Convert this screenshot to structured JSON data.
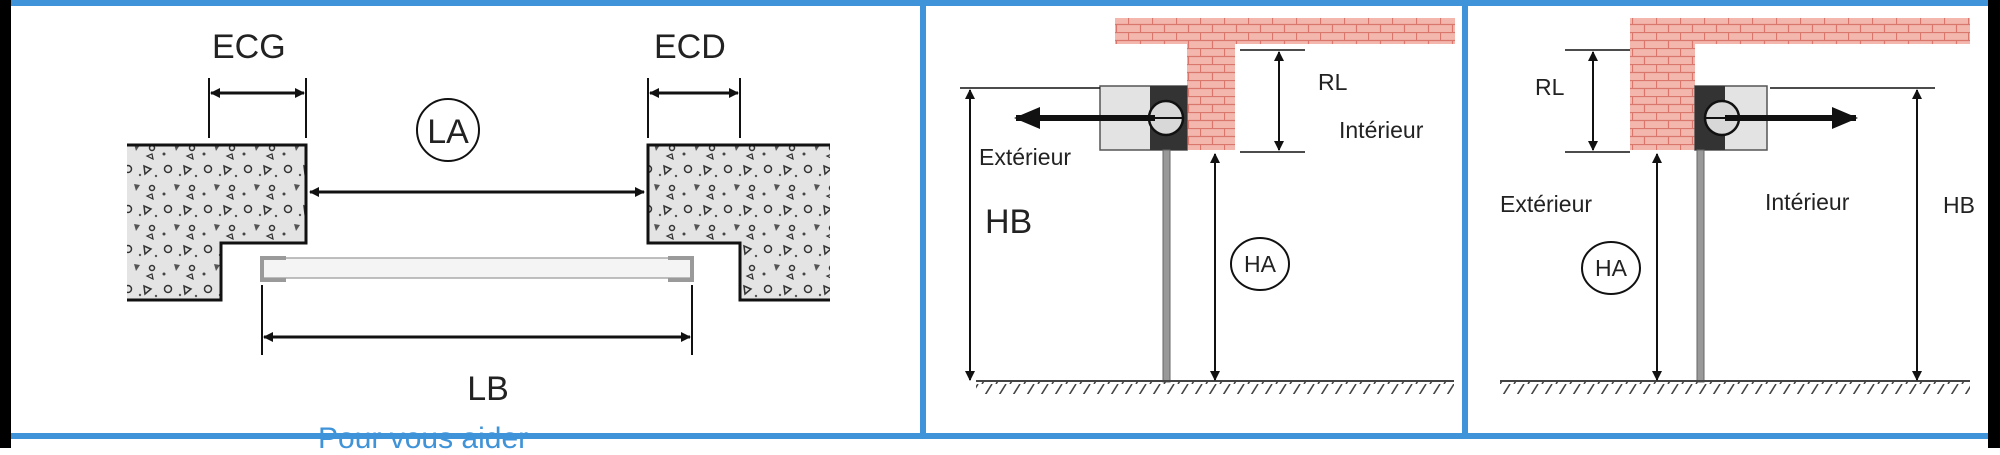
{
  "frame_color": "#3f93d8",
  "panels": {
    "plan": {
      "ecg": "ECG",
      "ecd": "ECD",
      "la": "LA",
      "lb": "LB"
    },
    "section_left": {
      "rl": "RL",
      "interieur": "Intérieur",
      "exterieur": "Extérieur",
      "hb": "HB",
      "ha": "HA"
    },
    "section_right": {
      "rl": "RL",
      "exterieur": "Extérieur",
      "interieur": "Intérieur",
      "hb": "HB",
      "ha": "HA"
    }
  },
  "footer_link": "Pour vous aider"
}
